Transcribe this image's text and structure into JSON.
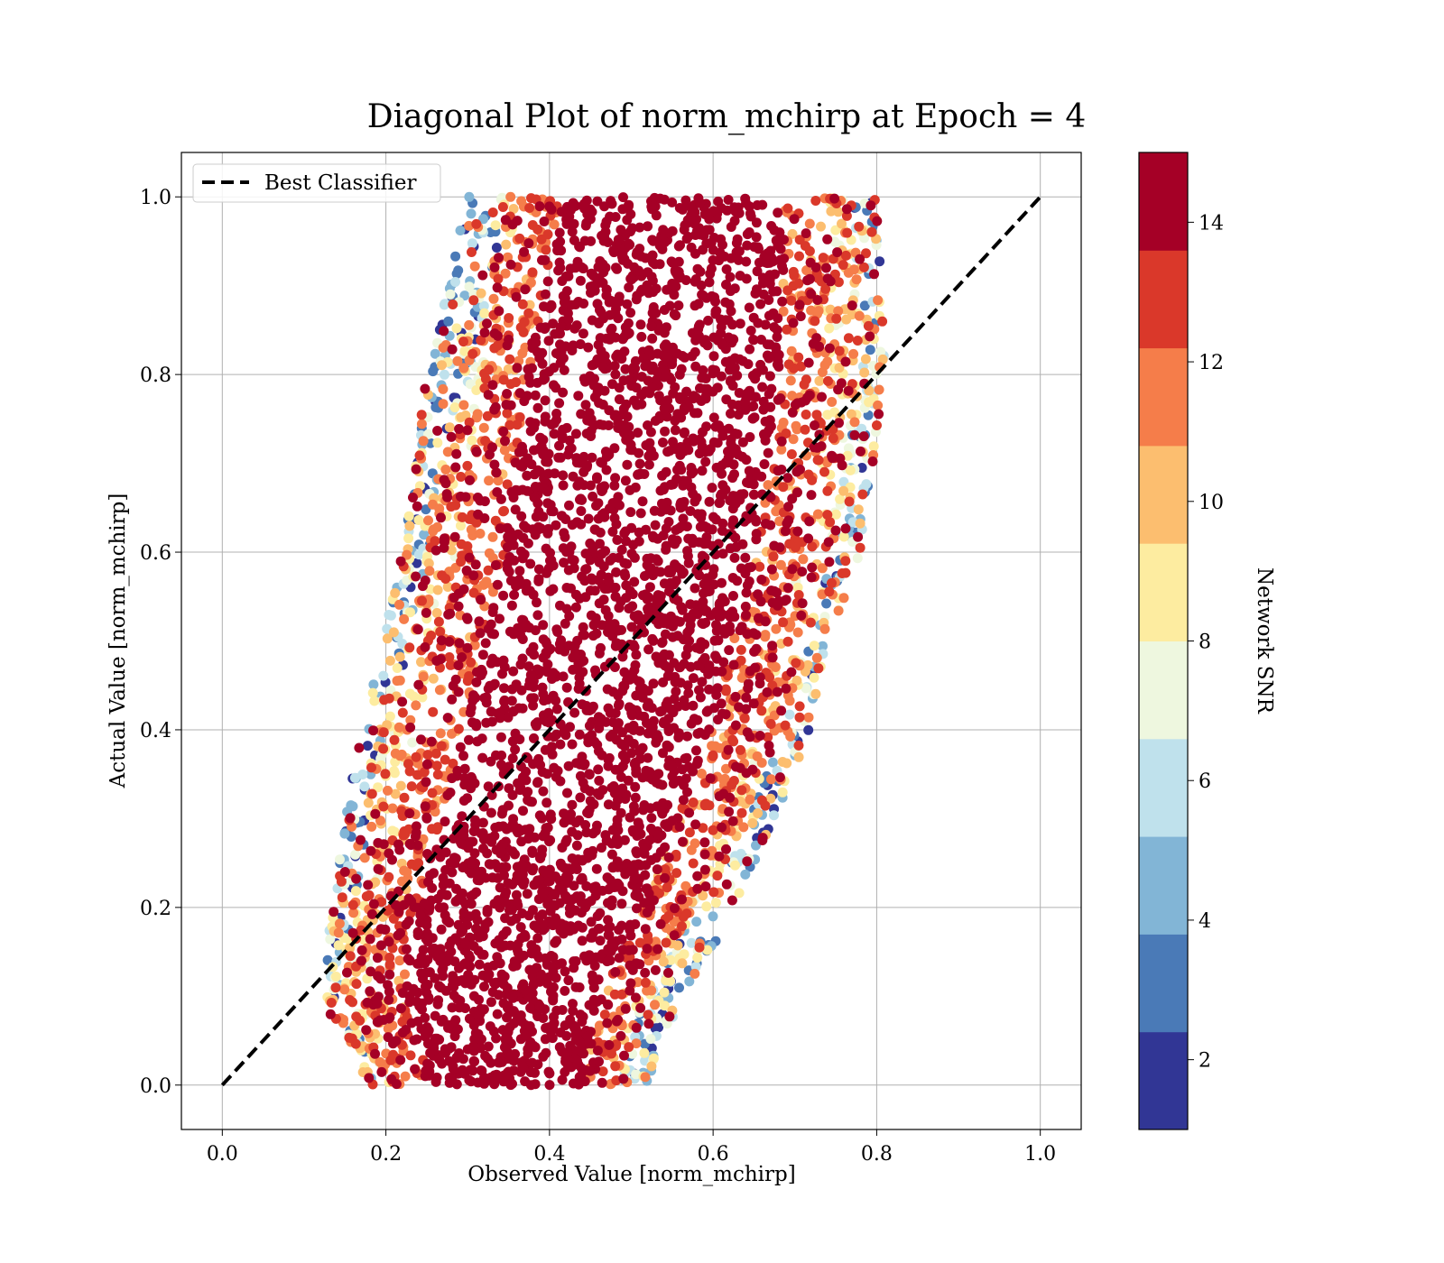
{
  "chart_data": {
    "type": "scatter",
    "title": "Diagonal Plot of norm_mchirp at Epoch = 4",
    "xlabel": "Observed Value [norm_mchirp]",
    "ylabel": "Actual Value [norm_mchirp]",
    "xlim": [
      -0.05,
      1.05
    ],
    "ylim": [
      -0.05,
      1.05
    ],
    "xticks": [
      "0.0",
      "0.2",
      "0.4",
      "0.6",
      "0.8",
      "1.0"
    ],
    "yticks": [
      "0.0",
      "0.2",
      "0.4",
      "0.6",
      "0.8",
      "1.0"
    ],
    "grid": true,
    "legend": {
      "placement": "upper-left",
      "entries": [
        {
          "name": "Best Classifier",
          "style": "black dashed line"
        }
      ]
    },
    "reference_line": {
      "name": "Best Classifier",
      "x": [
        0.0,
        1.0
      ],
      "y": [
        0.0,
        1.0
      ]
    },
    "colorbar": {
      "label": "Network SNR",
      "range": [
        1,
        15
      ],
      "ticks": [
        "2",
        "4",
        "6",
        "8",
        "10",
        "12",
        "14"
      ],
      "bins": [
        {
          "from": 1,
          "to": 2.4,
          "color": "#313695"
        },
        {
          "from": 2.4,
          "to": 3.8,
          "color": "#4a7ab7"
        },
        {
          "from": 3.8,
          "to": 5.2,
          "color": "#82b5d6"
        },
        {
          "from": 5.2,
          "to": 6.6,
          "color": "#bfe1ec"
        },
        {
          "from": 6.6,
          "to": 8.0,
          "color": "#eef7df"
        },
        {
          "from": 8.0,
          "to": 9.4,
          "color": "#fdeca0"
        },
        {
          "from": 9.4,
          "to": 10.8,
          "color": "#fcbe6f"
        },
        {
          "from": 10.8,
          "to": 12.2,
          "color": "#f57d4a"
        },
        {
          "from": 12.2,
          "to": 13.6,
          "color": "#da382a"
        },
        {
          "from": 13.6,
          "to": 15,
          "color": "#a50026"
        }
      ]
    },
    "point_cloud": {
      "description_points": "Dense band of predictions (observed, actual) along the diagonal, colored by Network SNR; low-SNR points lie at the upper-left and lower-right fringes.",
      "band_edges": [
        {
          "y": 0.0,
          "x_min": 0.18,
          "x_max": 0.52
        },
        {
          "y": 0.1,
          "x_min": 0.12,
          "x_max": 0.56
        },
        {
          "y": 0.2,
          "x_min": 0.13,
          "x_max": 0.63
        },
        {
          "y": 0.4,
          "x_min": 0.17,
          "x_max": 0.72
        },
        {
          "y": 0.6,
          "x_min": 0.22,
          "x_max": 0.78
        },
        {
          "y": 0.8,
          "x_min": 0.25,
          "x_max": 0.81
        },
        {
          "y": 1.0,
          "x_min": 0.3,
          "x_max": 0.8
        }
      ]
    }
  }
}
